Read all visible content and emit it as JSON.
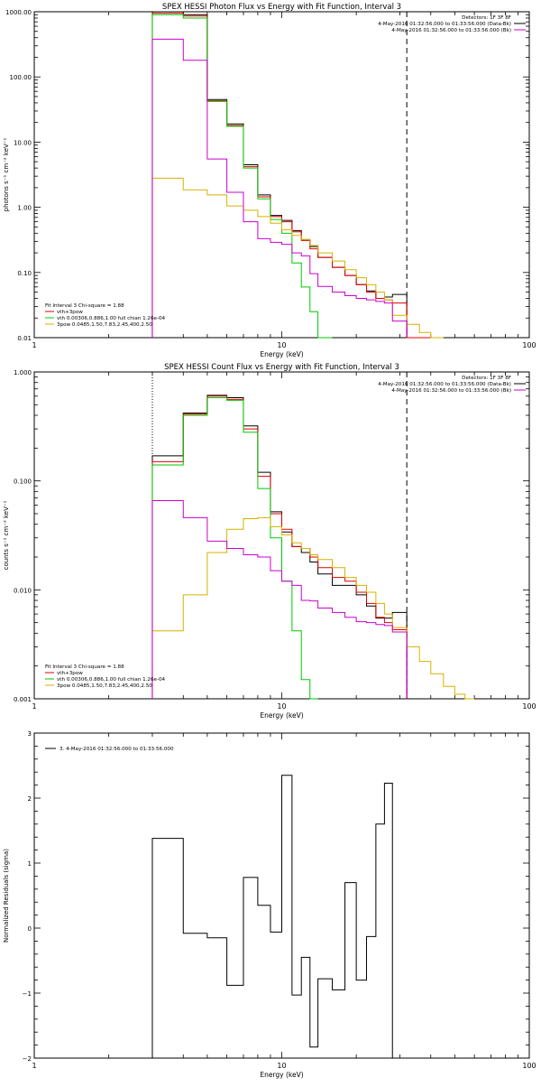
{
  "colors": {
    "black": "#000000",
    "red": "#e00000",
    "magenta": "#cc00cc",
    "green": "#00c800",
    "yellow": "#d8b000"
  },
  "chart_data": [
    {
      "type": "line",
      "title": "SPEX HESSI Photon Flux vs Energy with Fit Function, Interval 3",
      "xlabel": "Energy (keV)",
      "ylabel": "photons s⁻¹ cm⁻² keV⁻¹",
      "xscale": "log",
      "yscale": "log",
      "xlim": [
        1,
        100
      ],
      "ylim": [
        0.01,
        1000
      ],
      "xticks": [
        {
          "v": 1,
          "label": "1"
        },
        {
          "v": 10,
          "label": "10"
        },
        {
          "v": 100,
          "label": "100"
        }
      ],
      "yticks": [
        {
          "v": 0.01,
          "label": "0.01"
        },
        {
          "v": 0.1,
          "label": "0.10"
        },
        {
          "v": 1,
          "label": "1.00"
        },
        {
          "v": 10,
          "label": "10.00"
        },
        {
          "v": 100,
          "label": "100.00"
        },
        {
          "v": 1000,
          "label": "1000.00"
        }
      ],
      "legend_right": [
        "Detectors: 1F 3F 8F",
        "4-May-2016 01:32:56.000 to 01:33:56.000 (Data-Bk)",
        "4-May-2016 01:32:56.000 to 01:33:56.000 (Bk)"
      ],
      "legend_left": [
        "Fit Interval 3   Chi-square = 1.88",
        "vth+3pow",
        "vth 0.00306,0.886,1.00   full chian 1.26e-04",
        "3pow 0.0485,1.50,7.83,2.45,400,2.50"
      ],
      "vlines": [
        {
          "x": 3,
          "style": "dotted-black"
        },
        {
          "x": 3,
          "style": "dotted-yellow"
        },
        {
          "x": 32,
          "style": "dashed-black"
        }
      ],
      "edges": [
        3,
        4,
        5,
        6,
        7,
        8,
        9,
        10,
        11,
        12,
        13,
        14,
        16,
        18,
        20,
        22,
        24,
        26,
        28,
        32,
        36,
        40,
        45
      ],
      "series": [
        {
          "name": "Data-Bk",
          "color": "#000000",
          "values": [
            1000,
            900,
            45,
            19,
            4.5,
            1.55,
            0.75,
            0.63,
            0.44,
            0.32,
            0.25,
            0.17,
            0.12,
            0.09,
            0.065,
            0.052,
            0.04,
            0.042,
            0.046
          ]
        },
        {
          "name": "vth+3pow",
          "color": "#e00000",
          "values": [
            950,
            860,
            43,
            18,
            4.2,
            1.45,
            0.72,
            0.6,
            0.42,
            0.31,
            0.23,
            0.17,
            0.12,
            0.09,
            0.065,
            0.05,
            0.04,
            0.038,
            0.034,
            0.0,
            0.0,
            0.0
          ]
        },
        {
          "name": "vth",
          "color": "#00c800",
          "values": [
            900,
            800,
            42,
            17.5,
            4.0,
            1.35,
            0.65,
            0.4,
            0.14,
            0.06,
            0.025,
            0.0
          ]
        },
        {
          "name": "3pow",
          "color": "#d8b000",
          "values": [
            2.8,
            1.85,
            1.55,
            1.05,
            0.9,
            0.72,
            0.57,
            0.45,
            0.37,
            0.32,
            0.26,
            0.2,
            0.15,
            0.11,
            0.083,
            0.065,
            0.05,
            0.038,
            0.022,
            0.016,
            0.012,
            0.01
          ]
        },
        {
          "name": "Bk",
          "color": "#cc00cc",
          "values": [
            380,
            180,
            5.5,
            1.7,
            0.6,
            0.33,
            0.29,
            0.27,
            0.2,
            0.18,
            0.096,
            0.061,
            0.05,
            0.044,
            0.04,
            0.038,
            0.036,
            0.034,
            0.018
          ]
        }
      ]
    },
    {
      "type": "line",
      "title": "SPEX HESSI Count Flux vs Energy with Fit Function, Interval 3",
      "xlabel": "Energy (keV)",
      "ylabel": "counts s⁻¹ cm⁻² keV⁻¹",
      "xscale": "log",
      "yscale": "log",
      "xlim": [
        1,
        100
      ],
      "ylim": [
        0.001,
        1.0
      ],
      "xticks": [
        {
          "v": 1,
          "label": "1"
        },
        {
          "v": 10,
          "label": "10"
        },
        {
          "v": 100,
          "label": "100"
        }
      ],
      "yticks": [
        {
          "v": 0.001,
          "label": "0.001"
        },
        {
          "v": 0.01,
          "label": "0.010"
        },
        {
          "v": 0.1,
          "label": "0.100"
        },
        {
          "v": 1,
          "label": "1.000"
        }
      ],
      "legend_right": [
        "Detectors: 1F 3F 8F",
        "4-May-2016 01:32:56.000 to 01:33:56.000 (Data-Bk)",
        "4-May-2016 01:32:56.000 to 01:33:56.000 (Bk)"
      ],
      "legend_left": [
        "Fit Interval 3   Chi-square = 1.88",
        "vth+3pow",
        "vth 0.00306,0.886,1.00   full chian 1.26e-04",
        "3pow 0.0485,1.50,7.83,2.45,400,2.50"
      ],
      "vlines": [
        {
          "x": 3,
          "style": "dotted-black"
        },
        {
          "x": 32,
          "style": "dashed-black"
        }
      ],
      "edges": [
        3,
        4,
        5,
        6,
        7,
        8,
        9,
        10,
        11,
        12,
        13,
        14,
        16,
        18,
        20,
        22,
        24,
        26,
        28,
        32,
        36,
        40,
        45,
        50,
        55,
        60
      ],
      "series": [
        {
          "name": "Data-Bk",
          "color": "#000000",
          "values": [
            0.17,
            0.42,
            0.61,
            0.58,
            0.32,
            0.12,
            0.052,
            0.034,
            0.025,
            0.022,
            0.018,
            0.014,
            0.011,
            0.011,
            0.009,
            0.0071,
            0.0055,
            0.0055,
            0.0062
          ]
        },
        {
          "name": "vth+3pow",
          "color": "#e00000",
          "values": [
            0.15,
            0.41,
            0.6,
            0.56,
            0.3,
            0.11,
            0.05,
            0.036,
            0.025,
            0.024,
            0.02,
            0.016,
            0.013,
            0.012,
            0.0095,
            0.0075,
            0.0056,
            0.005,
            0.0043
          ]
        },
        {
          "name": "vth",
          "color": "#00c800",
          "values": [
            0.14,
            0.4,
            0.58,
            0.55,
            0.28,
            0.085,
            0.03,
            0.012,
            0.0042,
            0.0015,
            0.0001
          ]
        },
        {
          "name": "3pow",
          "color": "#d8b000",
          "values": [
            0.0042,
            0.009,
            0.022,
            0.036,
            0.045,
            0.046,
            0.038,
            0.032,
            0.027,
            0.024,
            0.021,
            0.019,
            0.016,
            0.013,
            0.011,
            0.0095,
            0.0075,
            0.006,
            0.0045,
            0.003,
            0.0022,
            0.0017,
            0.0013,
            0.0011,
            0.001
          ]
        },
        {
          "name": "Bk",
          "color": "#cc00cc",
          "values": [
            0.066,
            0.046,
            0.028,
            0.024,
            0.021,
            0.02,
            0.015,
            0.012,
            0.011,
            0.008,
            0.0079,
            0.0068,
            0.0062,
            0.0056,
            0.0051,
            0.005,
            0.0048,
            0.0047,
            0.0041
          ]
        }
      ]
    },
    {
      "type": "line",
      "title": "",
      "xlabel": "Energy (keV)",
      "ylabel": "Normalized Residuals (sigma)",
      "xscale": "log",
      "yscale": "linear",
      "xlim": [
        1,
        100
      ],
      "ylim": [
        -2,
        3
      ],
      "xticks": [
        {
          "v": 1,
          "label": "1"
        },
        {
          "v": 10,
          "label": "10"
        },
        {
          "v": 100,
          "label": "100"
        }
      ],
      "yticks": [
        {
          "v": -2,
          "label": "−2"
        },
        {
          "v": -1,
          "label": "−1"
        },
        {
          "v": 0,
          "label": "0"
        },
        {
          "v": 1,
          "label": "1"
        },
        {
          "v": 2,
          "label": "2"
        },
        {
          "v": 3,
          "label": "3"
        }
      ],
      "legend_left": [
        "3.  4-May-2016 01:32:56.000 to 01:33:56.000"
      ],
      "edges": [
        3,
        4,
        5,
        6,
        7,
        8,
        9,
        10,
        11,
        12,
        13,
        14,
        16,
        18,
        20,
        22,
        24,
        26,
        28,
        32
      ],
      "series": [
        {
          "name": "3.  4-May-2016 01:32:56.000 to 01:33:56.000",
          "color": "#000000",
          "values": [
            1.38,
            -0.08,
            -0.15,
            -0.88,
            0.78,
            0.35,
            -0.06,
            2.35,
            -1.03,
            -0.45,
            -1.83,
            -0.78,
            -0.95,
            0.7,
            -0.8,
            -0.13,
            1.6,
            2.23
          ]
        }
      ]
    }
  ]
}
